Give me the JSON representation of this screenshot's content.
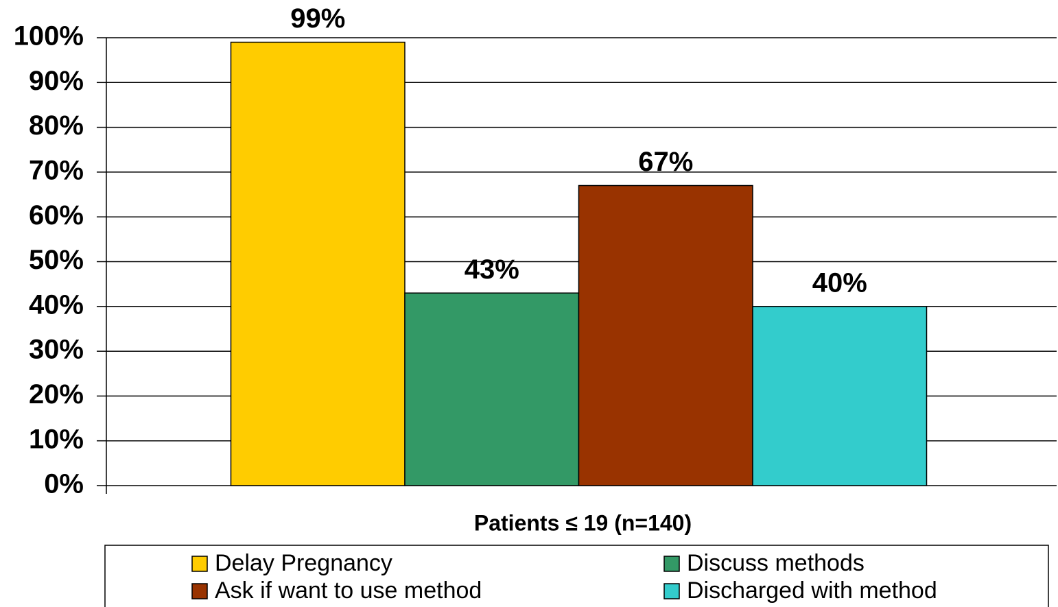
{
  "chart_data": {
    "type": "bar",
    "categories": [
      "Patients ≤ 19 (n=140)"
    ],
    "series": [
      {
        "name": "Delay Pregnancy",
        "color": "#ffcc00",
        "values": [
          99
        ],
        "value_labels": [
          "99%"
        ]
      },
      {
        "name": "Discuss methods",
        "color": "#339966",
        "values": [
          43
        ],
        "value_labels": [
          "43%"
        ]
      },
      {
        "name": "Ask if want to use method",
        "color": "#993300",
        "values": [
          67
        ],
        "value_labels": [
          "67%"
        ]
      },
      {
        "name": "Discharged with method",
        "color": "#33cccc",
        "values": [
          40
        ],
        "value_labels": [
          "40%"
        ]
      }
    ],
    "ylim": [
      0,
      100
    ],
    "yticks": [
      {
        "value": 0,
        "label": "0%"
      },
      {
        "value": 10,
        "label": "10%"
      },
      {
        "value": 20,
        "label": "20%"
      },
      {
        "value": 30,
        "label": "30%"
      },
      {
        "value": 40,
        "label": "40%"
      },
      {
        "value": 50,
        "label": "50%"
      },
      {
        "value": 60,
        "label": "60%"
      },
      {
        "value": 70,
        "label": "70%"
      },
      {
        "value": 80,
        "label": "80%"
      },
      {
        "value": 90,
        "label": "90%"
      },
      {
        "value": 100,
        "label": "100%"
      }
    ],
    "grid": true,
    "legend": "bottom"
  }
}
